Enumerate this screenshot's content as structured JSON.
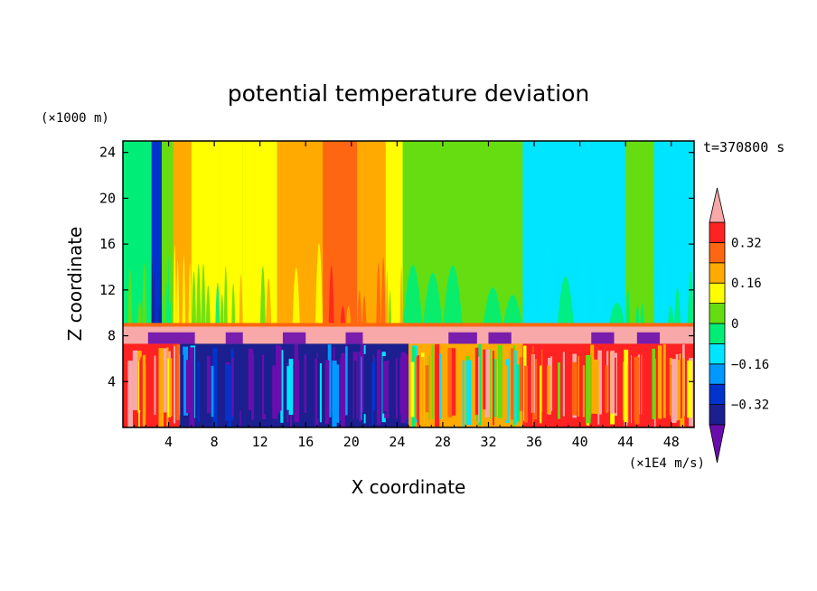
{
  "chart_data": {
    "type": "heatmap",
    "title": "potential temperature deviation",
    "xlabel": "X coordinate",
    "ylabel": "Z coordinate",
    "x_unit_label": "(×1E4 m/s)",
    "y_unit_label": "(×1000 m)",
    "time_label": "t=370800 s",
    "xlim": [
      0,
      50
    ],
    "ylim": [
      0,
      25
    ],
    "xticks": [
      4,
      8,
      12,
      16,
      20,
      24,
      28,
      32,
      36,
      40,
      44,
      48
    ],
    "yticks": [
      4,
      8,
      12,
      16,
      20,
      24
    ],
    "colorbar": {
      "tick_labels": [
        "0.32",
        "0.16",
        "0",
        "−0.16",
        "−0.32"
      ],
      "tick_values": [
        0.32,
        0.16,
        0,
        -0.16,
        -0.32
      ],
      "levels": [
        -0.4,
        -0.32,
        -0.24,
        -0.16,
        -0.08,
        0,
        0.08,
        0.16,
        0.24,
        0.32,
        0.4
      ],
      "colors": [
        "#6a0dad",
        "#1b1f8f",
        "#0033cc",
        "#0099ff",
        "#00e5ff",
        "#00ee77",
        "#66dd11",
        "#ffff00",
        "#ffaa00",
        "#ff6611",
        "#ff2222",
        "#f8a8a8"
      ],
      "extend": "both"
    },
    "layers": [
      {
        "z_range": [
          8.5,
          25
        ],
        "character": "smooth vertical bands",
        "dominant_values": [
          0.0,
          0.08,
          0.16,
          -0.08
        ]
      },
      {
        "z_range": [
          7.3,
          8.8
        ],
        "character": "strong positive inversion layer",
        "dominant_values": [
          0.4
        ]
      },
      {
        "z_range": [
          0,
          7.3
        ],
        "character": "turbulent mixed layer",
        "dominant_values": [
          -0.4,
          0.4,
          0.08
        ]
      }
    ],
    "upper_columns": [
      {
        "x": [
          0,
          2.5
        ],
        "value": -0.04
      },
      {
        "x": [
          2.5,
          3.4
        ],
        "value": -0.32
      },
      {
        "x": [
          3.4,
          4.4
        ],
        "value": 0.0
      },
      {
        "x": [
          4.4,
          6.0
        ],
        "value": 0.16
      },
      {
        "x": [
          6.0,
          8.5
        ],
        "value": 0.08
      },
      {
        "x": [
          8.5,
          10.5
        ],
        "value": 0.12
      },
      {
        "x": [
          10.5,
          13.5
        ],
        "value": 0.08
      },
      {
        "x": [
          13.5,
          17.5
        ],
        "value": 0.16
      },
      {
        "x": [
          17.5,
          20.5
        ],
        "value": 0.26
      },
      {
        "x": [
          20.5,
          23.0
        ],
        "value": 0.2
      },
      {
        "x": [
          23.0,
          24.5
        ],
        "value": 0.12
      },
      {
        "x": [
          24.5,
          35.0
        ],
        "value": 0.0
      },
      {
        "x": [
          35.0,
          44.0
        ],
        "value": -0.12
      },
      {
        "x": [
          44.0,
          46.5
        ],
        "value": 0.04
      },
      {
        "x": [
          46.5,
          50.0
        ],
        "value": -0.1
      }
    ],
    "lower_regions": [
      {
        "x": [
          0,
          5
        ],
        "value": 0.32
      },
      {
        "x": [
          5,
          25
        ],
        "value": -0.4
      },
      {
        "x": [
          25,
          35
        ],
        "value": 0.16
      },
      {
        "x": [
          35,
          50
        ],
        "value": 0.36
      }
    ]
  }
}
